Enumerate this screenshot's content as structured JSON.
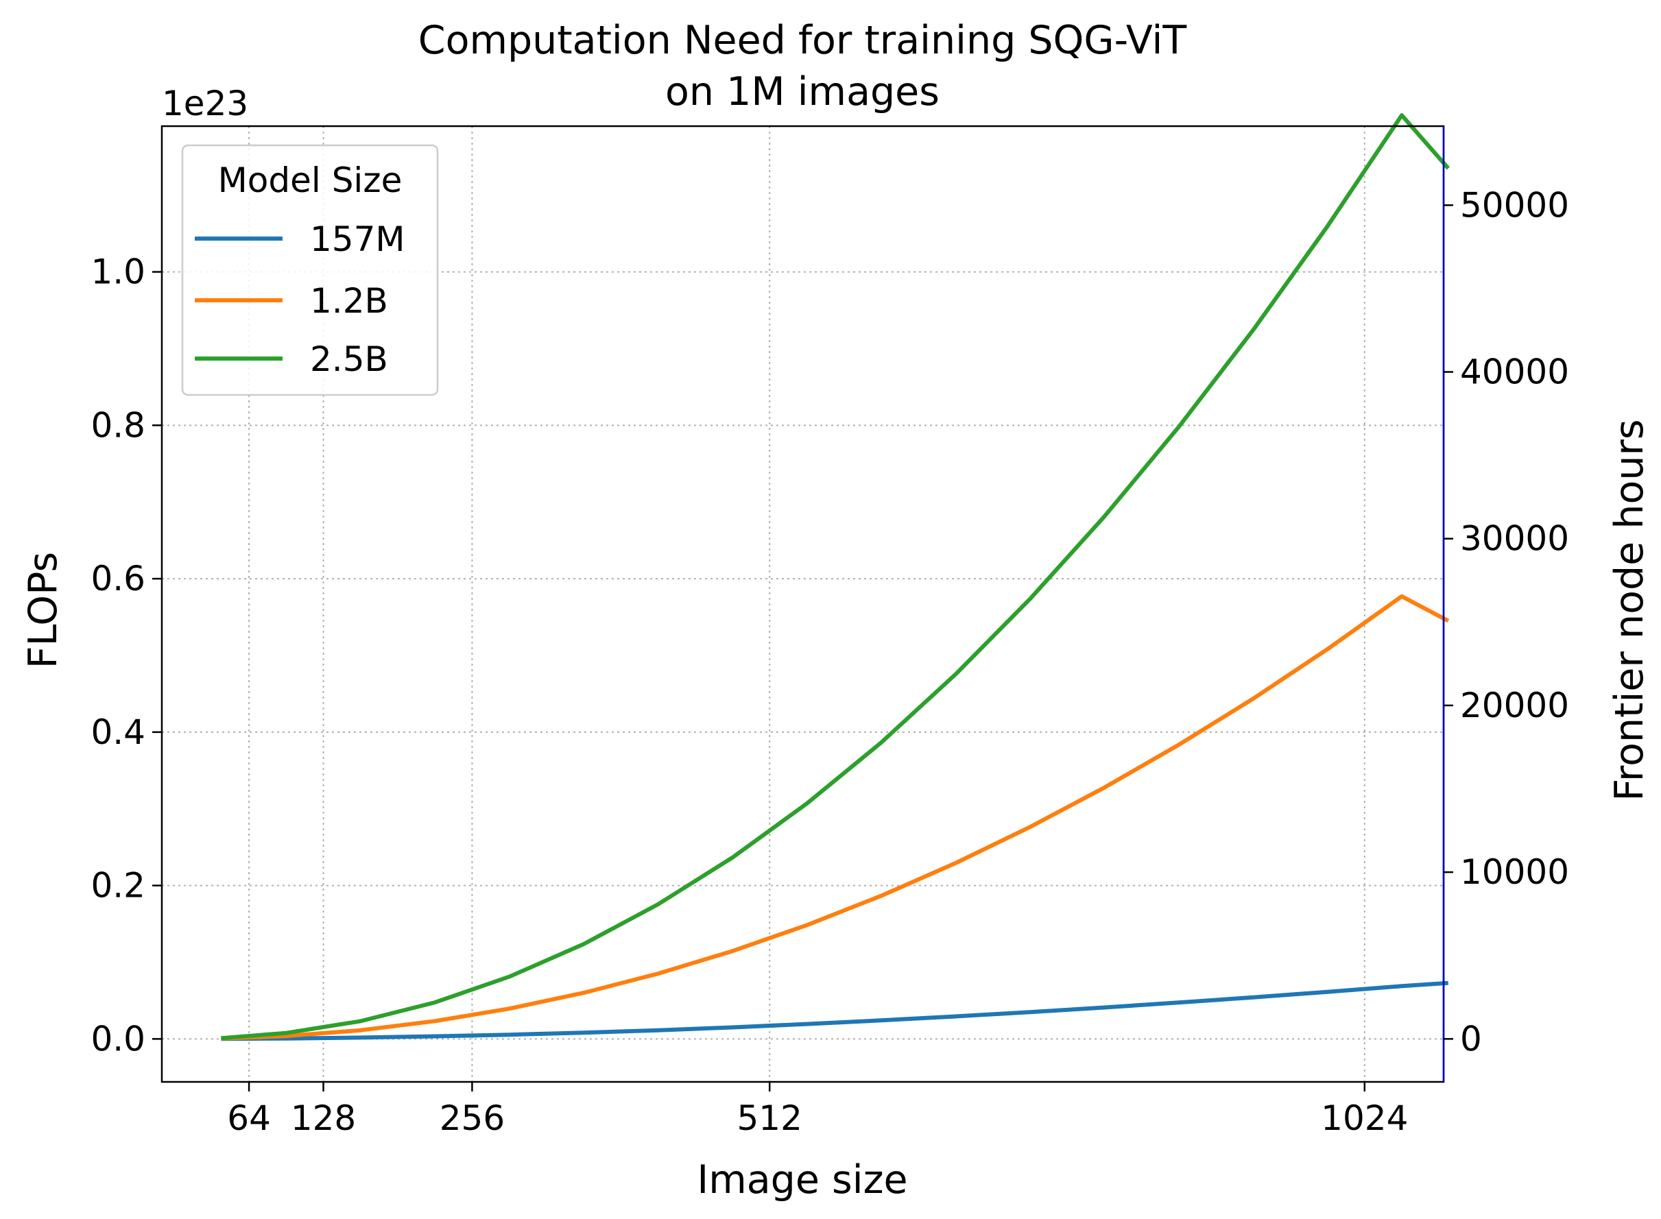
{
  "chart_data": {
    "type": "line",
    "title_lines": [
      "Computation Need for training SQG-ViT",
      "on 1M images"
    ],
    "xlabel": "Image size",
    "ylabel": "FLOPs",
    "y2label": "Frontier node hours",
    "offset_text": "1e23",
    "xlim": [
      -11,
      1092
    ],
    "ylim": [
      -0.056,
      1.19
    ],
    "y2lim": [
      -2577,
      54740
    ],
    "x_ticks": [
      64,
      128,
      256,
      512,
      1024
    ],
    "y_ticks": [
      0.0,
      0.2,
      0.4,
      0.6,
      0.8,
      1.0
    ],
    "y_tick_labels": [
      "0.0",
      "0.2",
      "0.4",
      "0.6",
      "0.8",
      "1.0"
    ],
    "y2_ticks": [
      0,
      10000,
      20000,
      30000,
      40000,
      50000
    ],
    "grid": true,
    "x": [
      40,
      96,
      160,
      224,
      288,
      352,
      416,
      480,
      544,
      608,
      672,
      736,
      800,
      864,
      928,
      992,
      1056,
      1096
    ],
    "series": [
      {
        "name": "157M",
        "color": "#1f77b4",
        "values": [
          0.0001,
          0.0006,
          0.0017,
          0.0034,
          0.0055,
          0.0081,
          0.0113,
          0.0151,
          0.0194,
          0.0242,
          0.0294,
          0.035,
          0.041,
          0.0474,
          0.0542,
          0.0614,
          0.0689,
          0.073
        ]
      },
      {
        "name": "1.2B",
        "color": "#ff7f0e",
        "values": [
          0.0005,
          0.0038,
          0.0113,
          0.0233,
          0.0395,
          0.0601,
          0.0851,
          0.1145,
          0.1483,
          0.1866,
          0.2292,
          0.2762,
          0.3276,
          0.3834,
          0.4435,
          0.5081,
          0.577,
          0.545
        ]
      },
      {
        "name": "2.5B",
        "color": "#2ca02c",
        "values": [
          0.001,
          0.0077,
          0.0232,
          0.0476,
          0.0811,
          0.1237,
          0.1755,
          0.2365,
          0.3068,
          0.3864,
          0.4753,
          0.5735,
          0.681,
          0.7978,
          0.924,
          1.0594,
          1.2042,
          1.135
        ]
      }
    ],
    "legend": {
      "title": "Model Size",
      "placement": "top-left"
    }
  }
}
